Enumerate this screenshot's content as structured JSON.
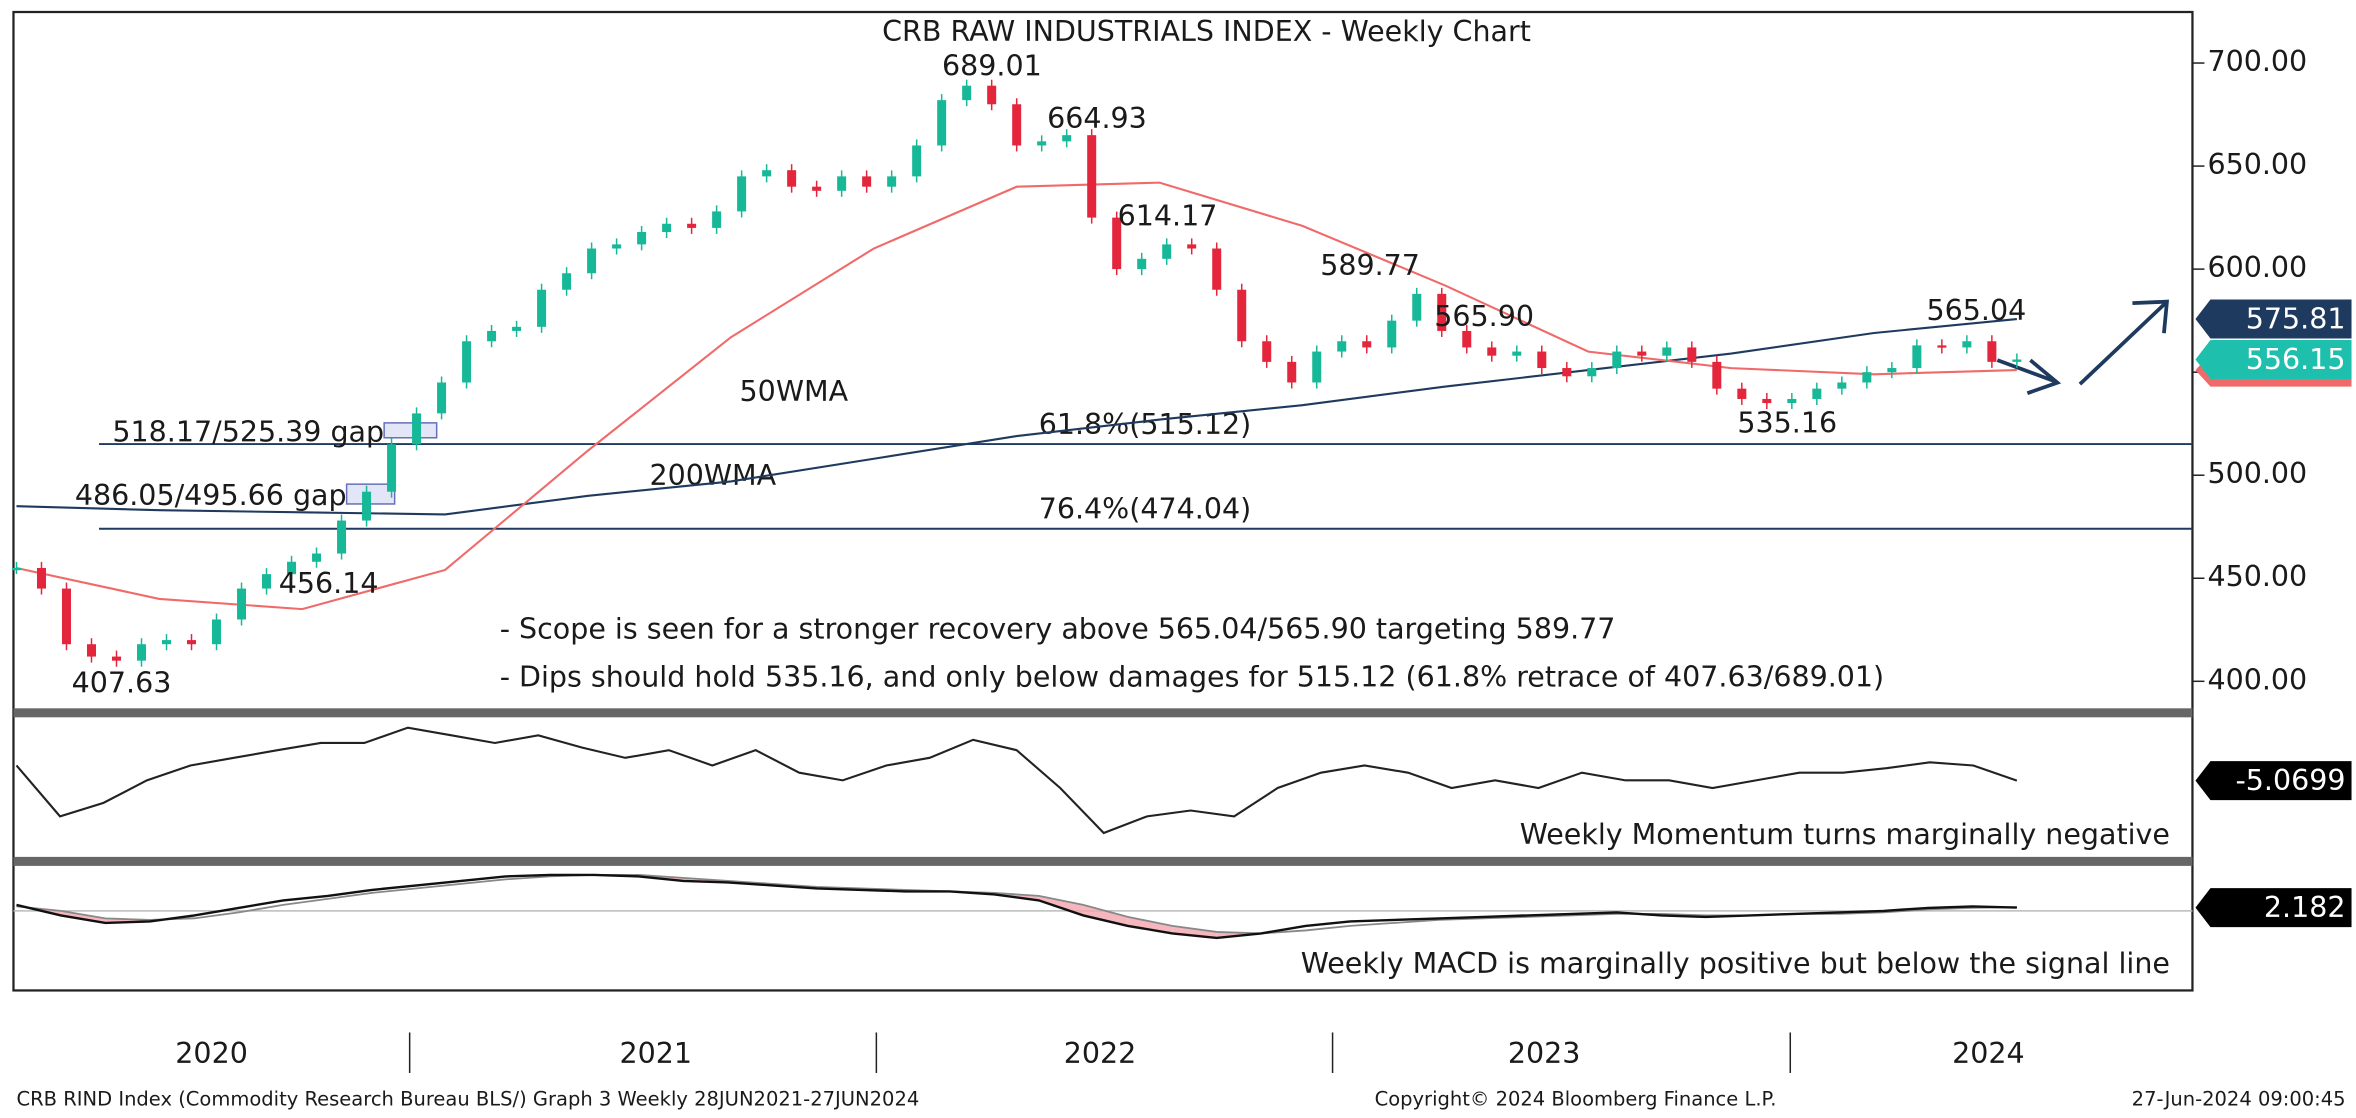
{
  "chart_data": {
    "type": "candlestick",
    "title": "CRB RAW INDUSTRIALS INDEX - Weekly Chart",
    "categories": [
      "2020",
      "2021",
      "2022",
      "2023",
      "2024"
    ],
    "ylim": [
      400,
      700
    ],
    "yticks": [
      {
        "value": 700,
        "label": "700.00"
      },
      {
        "value": 650,
        "label": "650.00"
      },
      {
        "value": 600,
        "label": "600.00"
      },
      {
        "value": 550,
        "label": "550.00"
      },
      {
        "value": 500,
        "label": "500.00"
      },
      {
        "value": 450,
        "label": "450.00"
      },
      {
        "value": 400,
        "label": "400.00"
      }
    ],
    "price": {
      "up_color": "#17b897",
      "down_color": "#e3263b",
      "values": [
        455,
        445,
        418,
        412,
        410,
        418,
        420,
        418,
        430,
        445,
        452,
        458,
        462,
        478,
        492,
        515,
        530,
        545,
        565,
        570,
        572,
        590,
        598,
        610,
        612,
        618,
        622,
        620,
        628,
        645,
        648,
        640,
        638,
        645,
        640,
        645,
        660,
        682,
        689,
        680,
        660,
        662,
        665,
        625,
        600,
        605,
        612,
        610,
        590,
        565,
        555,
        545,
        560,
        565,
        562,
        575,
        588,
        570,
        562,
        558,
        560,
        552,
        548,
        552,
        560,
        558,
        562,
        555,
        542,
        537,
        535,
        537,
        542,
        545,
        550,
        552,
        563,
        562,
        565,
        555,
        556.15
      ]
    },
    "ma50": {
      "name": "50WMA",
      "color": "#f06a6a",
      "values": [
        455,
        440,
        435,
        454,
        512,
        567,
        610,
        640,
        642,
        621,
        592,
        560,
        552,
        549,
        551
      ]
    },
    "ma200": {
      "name": "200WMA",
      "color": "#1f3a5f",
      "values": [
        485,
        483,
        482,
        481,
        490,
        497,
        508,
        519,
        527,
        534,
        543,
        551,
        559,
        569,
        575.81
      ]
    },
    "levels": [
      {
        "label": "61.8%(515.12)",
        "value": 515.12
      },
      {
        "label": "76.4%(474.04)",
        "value": 474.04
      }
    ],
    "gaps": [
      {
        "label": "518.17/525.39 gap",
        "low": 518.17,
        "high": 525.39
      },
      {
        "label": "486.05/495.66 gap",
        "low": 486.05,
        "high": 495.66
      }
    ],
    "annotations": [
      "689.01",
      "664.93",
      "614.17",
      "589.77",
      "565.90",
      "565.04",
      "535.16",
      "456.14",
      "407.63"
    ],
    "notes": [
      "- Scope is seen for a stronger recovery above 565.04/565.90 targeting 589.77",
      "- Dips should hold 535.16, and only below damages for 515.12 (61.8% retrace of 407.63/689.01)"
    ],
    "tags": [
      575.81,
      556.15
    ],
    "momentum": {
      "note": "Weekly Momentum turns marginally negative",
      "tag": -5.0699,
      "values": [
        -1.7,
        -13,
        -10,
        -5,
        -1.7,
        0,
        1.7,
        3.3,
        3.3,
        6.7,
        5,
        3.3,
        5,
        2.3,
        0,
        1.7,
        -1.7,
        1.7,
        -3.3,
        -5,
        -1.7,
        0,
        4,
        1.7,
        -6.7,
        -16.7,
        -13,
        -11.7,
        -13,
        -6.7,
        -3.3,
        -1.7,
        -3.3,
        -6.7,
        -5,
        -6.7,
        -3.3,
        -5,
        -5,
        -6.7,
        -5,
        -3.3,
        -3.3,
        -2.3,
        -1,
        -1.7,
        -5.0699
      ]
    },
    "macd": {
      "note": "Weekly MACD is marginally positive but below the signal line",
      "tag": 2.182,
      "values": [
        4,
        -3,
        -8,
        -7,
        -3,
        2,
        7,
        10,
        14,
        17,
        20,
        23,
        24,
        24,
        23,
        20,
        19,
        17,
        15,
        14,
        13,
        13,
        11,
        7,
        -3,
        -10,
        -15,
        -18,
        -15,
        -10,
        -7,
        -6,
        -5,
        -4,
        -3,
        -2,
        -1,
        -3,
        -4,
        -3,
        -2,
        -1,
        0,
        2,
        3,
        2.182
      ],
      "signal": [
        3,
        0,
        -5,
        -6,
        -5,
        -1,
        4,
        8,
        12,
        15,
        18,
        21,
        23,
        24,
        24,
        22,
        20,
        18,
        16,
        15,
        14,
        13,
        12,
        10,
        4,
        -4,
        -10,
        -14,
        -15,
        -13,
        -10,
        -8,
        -6,
        -5,
        -4,
        -3,
        -2,
        -2,
        -3,
        -3,
        -2,
        -2,
        -1,
        1,
        2,
        2.5
      ]
    },
    "footer": [
      "CRB RIND Index (Commodity Research Bureau BLS/) Graph 3  Weekly 28JUN2021-27JUN2024",
      "Copyright© 2024 Bloomberg Finance L.P.",
      "27-Jun-2024 09:00:45"
    ]
  }
}
